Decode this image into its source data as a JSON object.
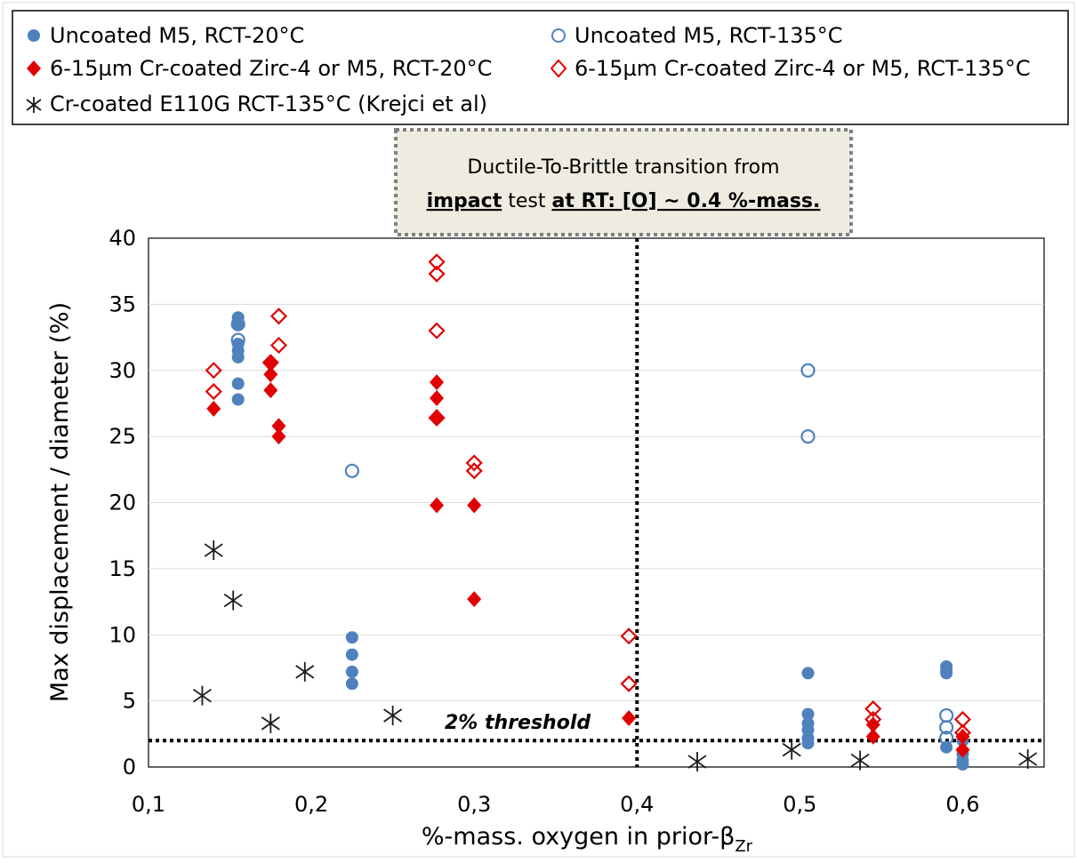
{
  "colors": {
    "blue": "#4f81bd",
    "red": "#e00000",
    "black": "#1a1a1a",
    "grid": "#d9d9d9",
    "box_fill": "#eeece1",
    "box_border": "#7f7f7f"
  },
  "chart_data": {
    "type": "scatter",
    "xlabel": "%-mass. oxygen in prior-β",
    "xlabel_subscript": "Zr",
    "ylabel": "Max displacement  / diameter  (%)",
    "xlim": [
      0.1,
      0.65
    ],
    "ylim": [
      0,
      40
    ],
    "x_ticks": [
      "0,1",
      "0,2",
      "0,3",
      "0,4",
      "0,5",
      "0,6"
    ],
    "y_ticks": [
      "0",
      "5",
      "10",
      "15",
      "20",
      "25",
      "30",
      "35",
      "40"
    ],
    "grid": "horizontal",
    "legend_position": "top",
    "annotations": {
      "box_line1": "Ductile-To-Brittle transition from",
      "box_line2_a": "impact",
      "box_line2_b": " test ",
      "box_line2_c": "at RT: [O] ~ 0.4 %-mass.",
      "threshold_label": "2% threshold"
    },
    "threshold_y": 2,
    "transition_x": 0.4,
    "series": [
      {
        "name": "Uncoated M5, RCT-20°C",
        "marker": "circle-filled",
        "color": "#4f81bd",
        "points": [
          [
            0.155,
            34
          ],
          [
            0.155,
            33.5
          ],
          [
            0.155,
            32
          ],
          [
            0.155,
            31.5
          ],
          [
            0.155,
            31
          ],
          [
            0.155,
            29
          ],
          [
            0.155,
            27.8
          ],
          [
            0.225,
            9.8
          ],
          [
            0.225,
            8.5
          ],
          [
            0.225,
            7.2
          ],
          [
            0.225,
            6.3
          ],
          [
            0.505,
            7.1
          ],
          [
            0.505,
            4
          ],
          [
            0.505,
            3.3
          ],
          [
            0.505,
            2.8
          ],
          [
            0.505,
            2.2
          ],
          [
            0.505,
            1.8
          ],
          [
            0.59,
            7.6
          ],
          [
            0.59,
            7.3
          ],
          [
            0.59,
            7.1
          ],
          [
            0.59,
            1.5
          ],
          [
            0.6,
            2
          ],
          [
            0.6,
            1
          ],
          [
            0.6,
            0.5
          ],
          [
            0.6,
            0.2
          ]
        ]
      },
      {
        "name": "Uncoated M5, RCT-135°C",
        "marker": "circle-open",
        "color": "#4f81bd",
        "points": [
          [
            0.155,
            33.5
          ],
          [
            0.155,
            32.3
          ],
          [
            0.225,
            22.4
          ],
          [
            0.505,
            30
          ],
          [
            0.505,
            25
          ],
          [
            0.59,
            3.9
          ],
          [
            0.59,
            3
          ],
          [
            0.59,
            2.2
          ]
        ]
      },
      {
        "name": "6-15µm Cr-coated Zirc-4 or M5, RCT-20°C",
        "marker": "diamond-filled",
        "color": "#e00000",
        "points": [
          [
            0.14,
            27.1
          ],
          [
            0.175,
            30.5
          ],
          [
            0.175,
            29.7
          ],
          [
            0.175,
            28.5
          ],
          [
            0.18,
            25.8
          ],
          [
            0.18,
            25
          ],
          [
            0.277,
            29.1
          ],
          [
            0.277,
            27.9
          ],
          [
            0.277,
            26.5
          ],
          [
            0.277,
            19.8
          ],
          [
            0.3,
            19.8
          ],
          [
            0.3,
            12.7
          ],
          [
            0.395,
            3.7
          ],
          [
            0.545,
            3.2
          ],
          [
            0.545,
            2.3
          ],
          [
            0.6,
            2.3
          ],
          [
            0.6,
            1.3
          ]
        ]
      },
      {
        "name": "6-15µm Cr-coated Zirc-4 or M5, RCT-135°C",
        "marker": "diamond-open",
        "color": "#e00000",
        "points": [
          [
            0.14,
            30
          ],
          [
            0.14,
            28.4
          ],
          [
            0.18,
            34.1
          ],
          [
            0.18,
            31.9
          ],
          [
            0.175,
            30.6
          ],
          [
            0.277,
            38.2
          ],
          [
            0.277,
            37.3
          ],
          [
            0.277,
            33
          ],
          [
            0.277,
            26.4
          ],
          [
            0.3,
            23
          ],
          [
            0.3,
            22.4
          ],
          [
            0.395,
            9.9
          ],
          [
            0.395,
            6.3
          ],
          [
            0.545,
            4.4
          ],
          [
            0.545,
            3.6
          ],
          [
            0.6,
            3.6
          ],
          [
            0.6,
            2.6
          ]
        ]
      },
      {
        "name": "Cr-coated E110G RCT-135°C (Krejci et al)",
        "marker": "asterisk",
        "color": "#1a1a1a",
        "points": [
          [
            0.14,
            16.4
          ],
          [
            0.152,
            12.6
          ],
          [
            0.133,
            5.4
          ],
          [
            0.196,
            7.2
          ],
          [
            0.175,
            3.3
          ],
          [
            0.25,
            3.9
          ],
          [
            0.437,
            0.4
          ],
          [
            0.495,
            1.3
          ],
          [
            0.537,
            0.5
          ],
          [
            0.64,
            0.6
          ]
        ]
      }
    ]
  }
}
